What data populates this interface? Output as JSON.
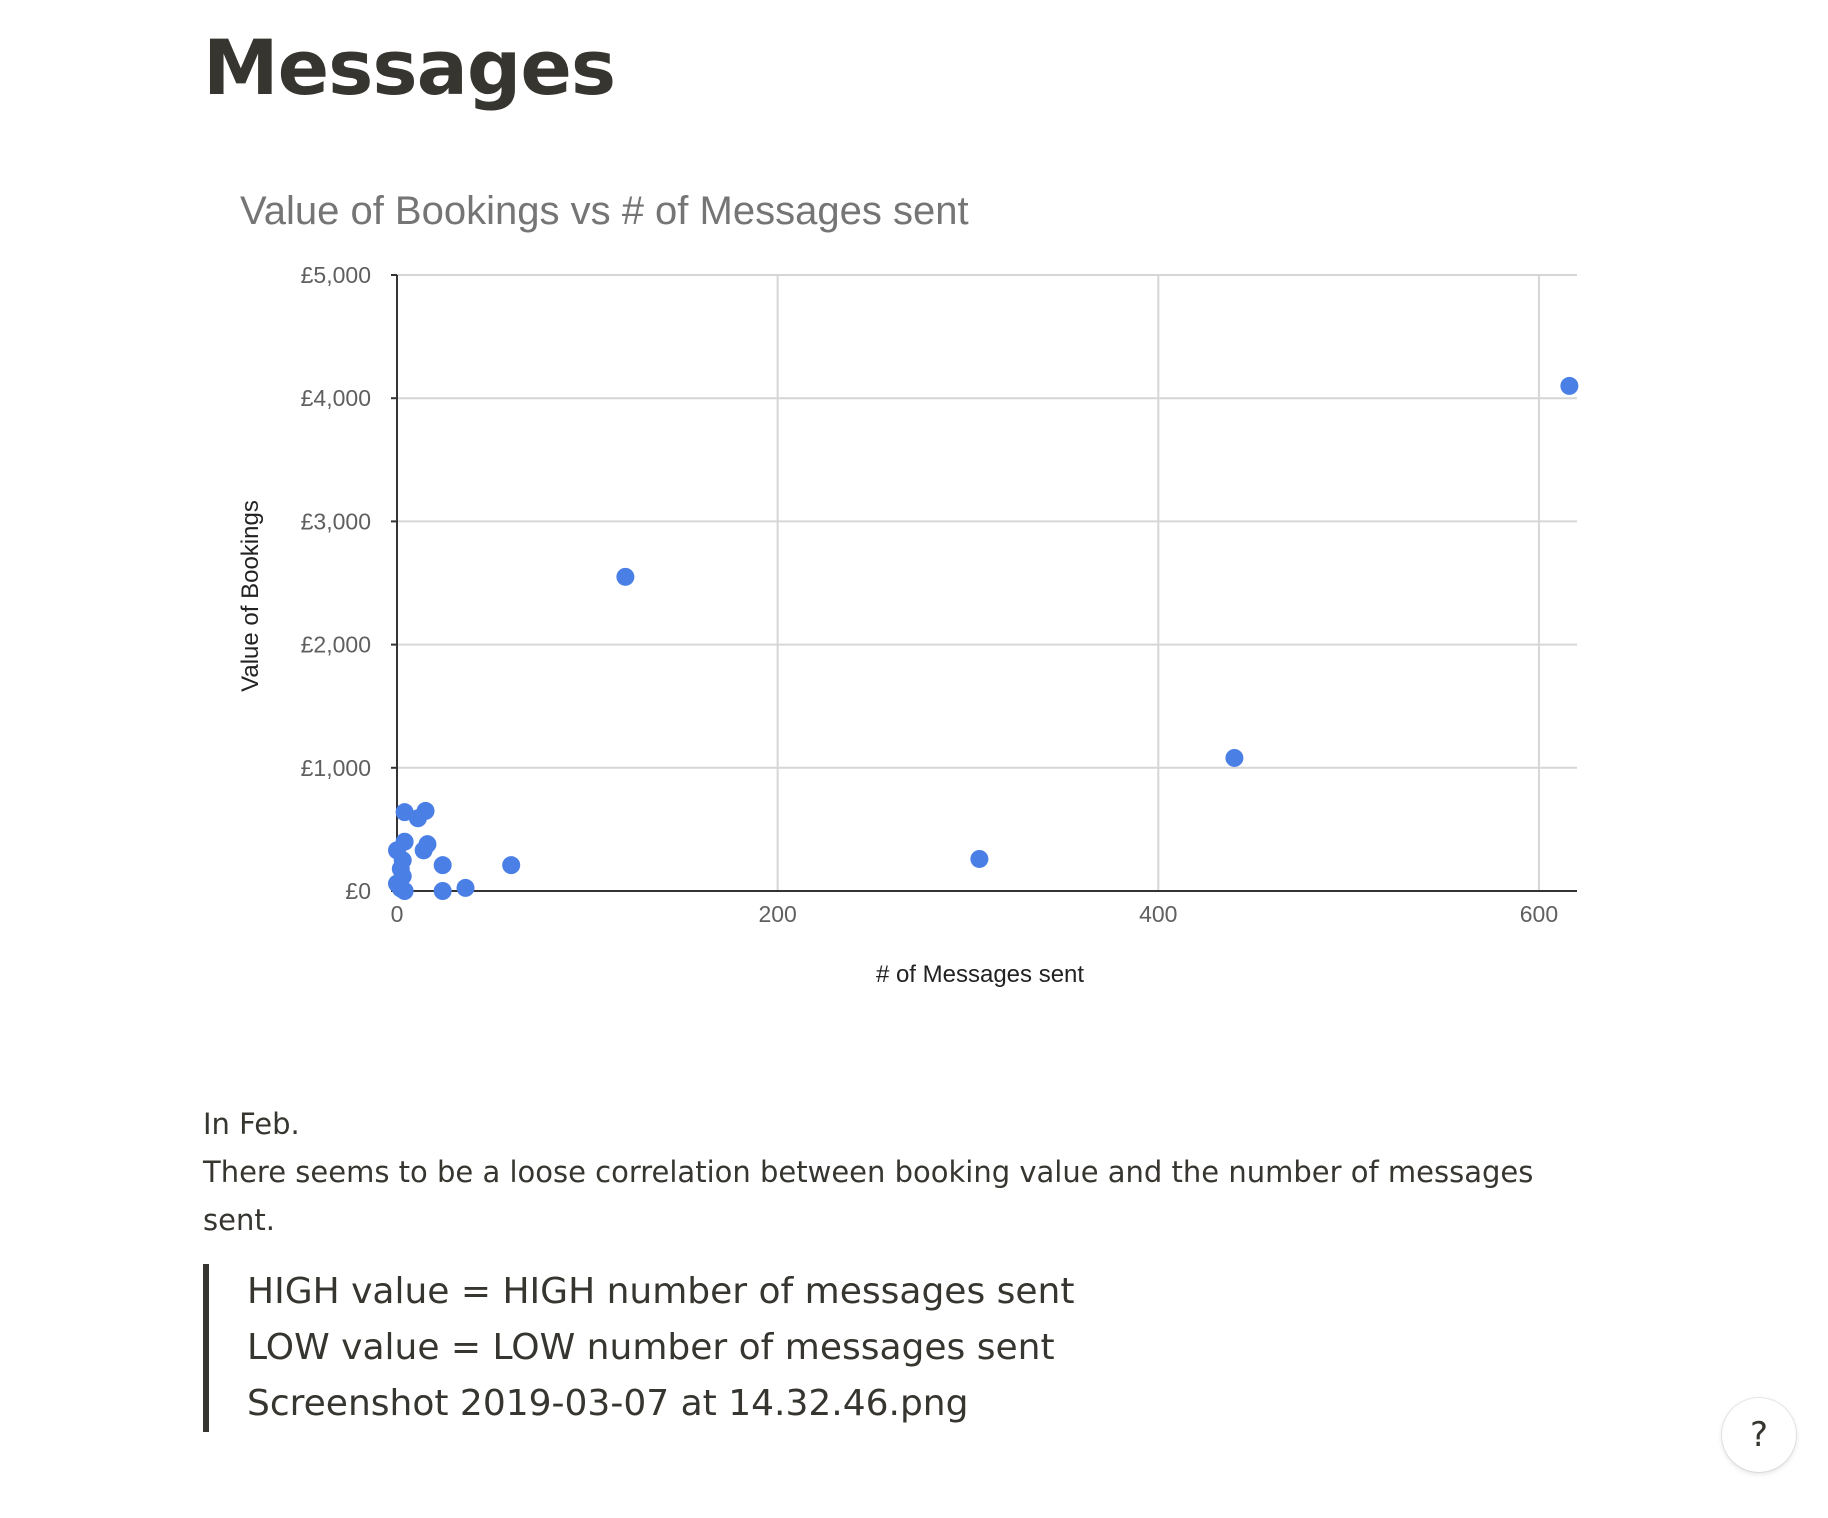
{
  "page": {
    "title": "Messages"
  },
  "chart_data": {
    "type": "scatter",
    "title": "Value of Bookings vs # of Messages sent",
    "xlabel": "# of Messages sent",
    "ylabel": "Value of Bookings",
    "xlim": [
      0,
      620
    ],
    "ylim": [
      0,
      5000
    ],
    "xticks": [
      "0",
      "200",
      "400",
      "600"
    ],
    "xtick_values": [
      0,
      200,
      400,
      600
    ],
    "yticks": [
      "£0",
      "£1,000",
      "£2,000",
      "£3,000",
      "£4,000",
      "£5,000"
    ],
    "ytick_values": [
      0,
      1000,
      2000,
      3000,
      4000,
      5000
    ],
    "grid": true,
    "point_color": "#4a7fe6",
    "points": [
      {
        "x": 616,
        "y": 4100
      },
      {
        "x": 120,
        "y": 2550
      },
      {
        "x": 440,
        "y": 1080
      },
      {
        "x": 306,
        "y": 260
      },
      {
        "x": 60,
        "y": 210
      },
      {
        "x": 36,
        "y": 25
      },
      {
        "x": 24,
        "y": 210
      },
      {
        "x": 24,
        "y": 0
      },
      {
        "x": 15,
        "y": 650
      },
      {
        "x": 11,
        "y": 590
      },
      {
        "x": 16,
        "y": 380
      },
      {
        "x": 14,
        "y": 330
      },
      {
        "x": 4,
        "y": 640
      },
      {
        "x": 4,
        "y": 400
      },
      {
        "x": 0,
        "y": 330
      },
      {
        "x": 3,
        "y": 250
      },
      {
        "x": 2,
        "y": 180
      },
      {
        "x": 3,
        "y": 120
      },
      {
        "x": 0,
        "y": 60
      },
      {
        "x": 2,
        "y": 20
      },
      {
        "x": 4,
        "y": 0
      }
    ]
  },
  "body": {
    "line1": "In Feb.",
    "line2": "There seems to be a loose correlation between booking value and the number of messages sent."
  },
  "quote": {
    "line1": "HIGH value = HIGH number of messages sent",
    "line2": "LOW value = LOW number of messages sent",
    "line3": "Screenshot 2019-03-07 at 14.32.46.png"
  },
  "help": {
    "label": "?"
  }
}
